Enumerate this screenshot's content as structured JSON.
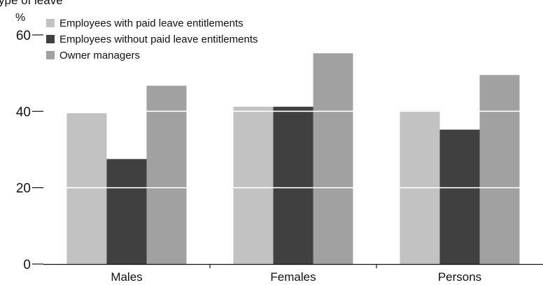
{
  "chart_data": {
    "type": "bar",
    "title": "ype of leave",
    "ylabel": "%",
    "xlabel": "",
    "categories": [
      "Males",
      "Females",
      "Persons"
    ],
    "series": [
      {
        "name": "Employees with paid leave entitlements",
        "values": [
          39.5,
          41.2,
          40.2
        ],
        "color": "#c2c2c2"
      },
      {
        "name": "Employees without paid leave entitlements",
        "values": [
          27.5,
          41.2,
          35.2
        ],
        "color": "#404040"
      },
      {
        "name": "Owner managers",
        "values": [
          46.7,
          55.2,
          49.5
        ],
        "color": "#a1a1a1"
      }
    ],
    "ylim": [
      0,
      60
    ],
    "yticks": [
      0,
      20,
      40,
      60
    ],
    "grid": true,
    "grid_color": "#ffffff",
    "legend_position": "top-left"
  }
}
